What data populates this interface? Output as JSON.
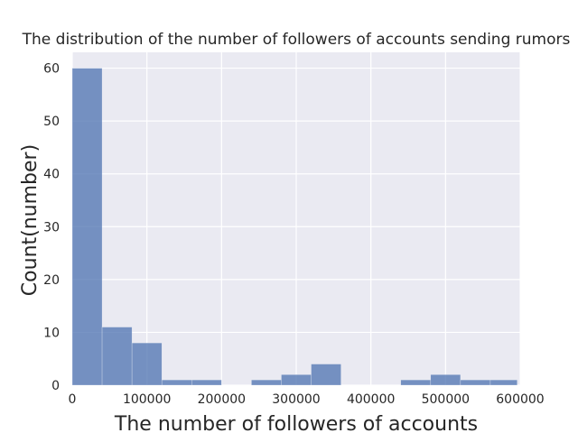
{
  "chart_data": {
    "type": "bar",
    "title": "The distribution of the number of followers of accounts sending rumors",
    "xlabel": "The number of followers of accounts",
    "ylabel": "Count(number)",
    "xlim": [
      0,
      600000
    ],
    "ylim": [
      0,
      63
    ],
    "grid": true,
    "legend": "none",
    "bar_color": "#4c72b0",
    "background_color": "#eaeaf2",
    "grid_color": "#ffffff",
    "bins": [
      {
        "x0": 0,
        "x1": 40000,
        "count": 60
      },
      {
        "x0": 40000,
        "x1": 80000,
        "count": 11
      },
      {
        "x0": 80000,
        "x1": 120000,
        "count": 8
      },
      {
        "x0": 120000,
        "x1": 160000,
        "count": 1
      },
      {
        "x0": 160000,
        "x1": 200000,
        "count": 1
      },
      {
        "x0": 200000,
        "x1": 240000,
        "count": 0
      },
      {
        "x0": 240000,
        "x1": 280000,
        "count": 1
      },
      {
        "x0": 280000,
        "x1": 320000,
        "count": 2
      },
      {
        "x0": 320000,
        "x1": 360000,
        "count": 4
      },
      {
        "x0": 360000,
        "x1": 400000,
        "count": 0
      },
      {
        "x0": 400000,
        "x1": 440000,
        "count": 0
      },
      {
        "x0": 440000,
        "x1": 480000,
        "count": 1
      },
      {
        "x0": 480000,
        "x1": 520000,
        "count": 2
      },
      {
        "x0": 520000,
        "x1": 560000,
        "count": 1
      },
      {
        "x0": 560000,
        "x1": 596000,
        "count": 1
      }
    ],
    "xticks": [
      0,
      100000,
      200000,
      300000,
      400000,
      500000,
      600000
    ],
    "xtick_labels": [
      "0",
      "100000",
      "200000",
      "300000",
      "400000",
      "500000",
      "600000"
    ],
    "yticks": [
      0,
      10,
      20,
      30,
      40,
      50,
      60
    ],
    "ytick_labels": [
      "0",
      "10",
      "20",
      "30",
      "40",
      "50",
      "60"
    ]
  }
}
